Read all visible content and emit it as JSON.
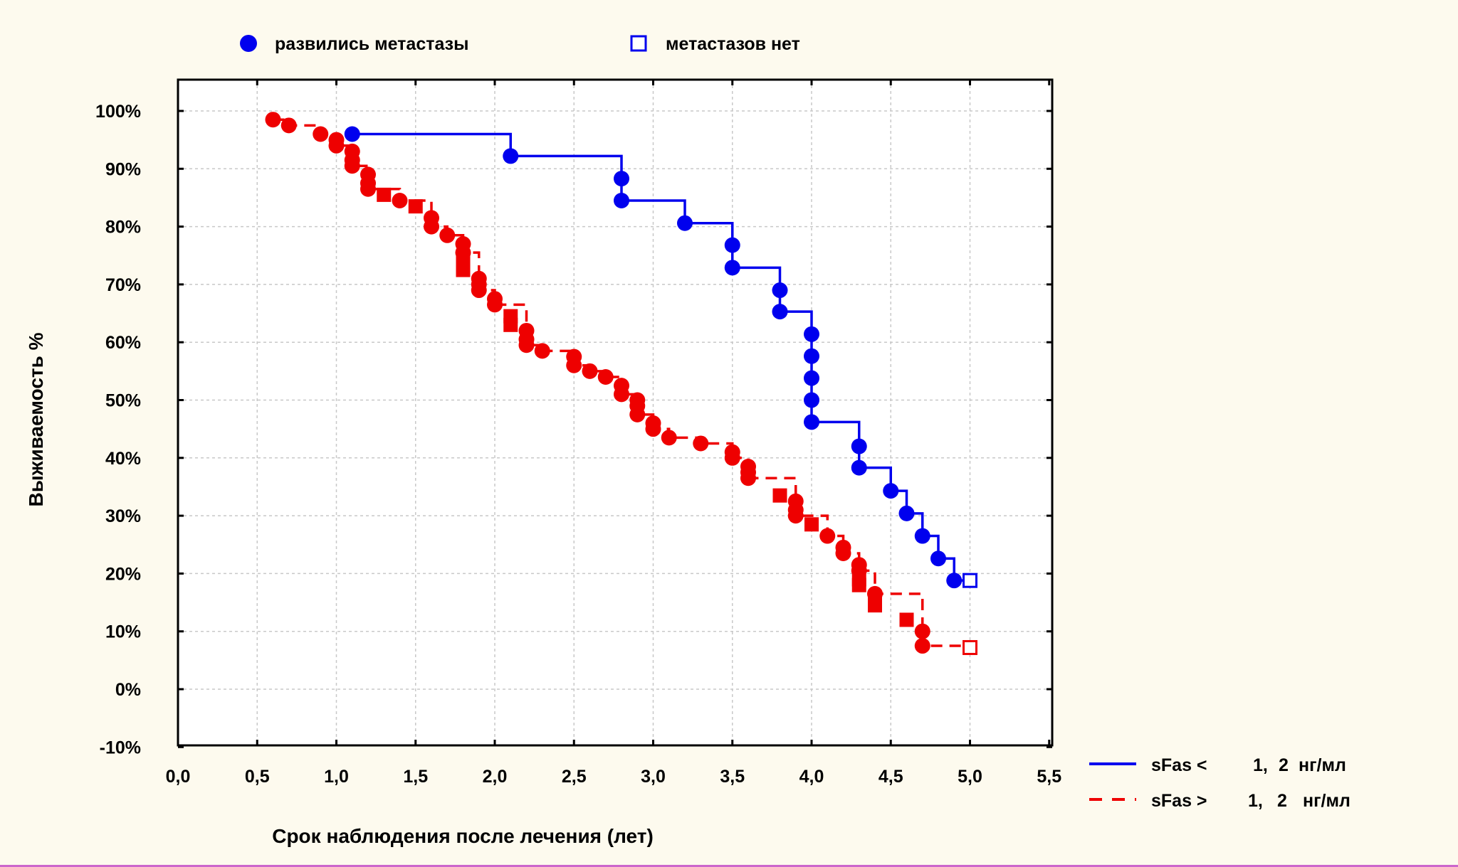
{
  "chart_data": {
    "type": "line",
    "title": "",
    "xlabel": "Срок наблюдения после лечения (лет)",
    "ylabel": "Выживаемость %",
    "xlim": [
      0.0,
      5.5
    ],
    "ylim": [
      -10,
      105
    ],
    "x_ticks": [
      "0,0",
      "0,5",
      "1,0",
      "1,5",
      "2,0",
      "2,5",
      "3,0",
      "3,5",
      "4,0",
      "4,5",
      "5,0",
      "5,5"
    ],
    "y_ticks": [
      "100%",
      "90%",
      "80%",
      "70%",
      "60%",
      "50%",
      "40%",
      "30%",
      "20%",
      "10%",
      "0%",
      "-10%"
    ],
    "grid": true,
    "marker_legend": {
      "event": {
        "label": "развились метастазы",
        "marker": "filled-circle"
      },
      "censored": {
        "label": "метастазов нет",
        "marker": "open-square"
      }
    },
    "series": [
      {
        "name": "sFas <",
        "name_value": "1,",
        "name_value2": "2",
        "name_unit": "нг/мл",
        "color": "#0000ee",
        "style": "solid",
        "steps": [
          [
            1.1,
            96
          ],
          [
            2.1,
            92.2
          ],
          [
            2.8,
            88.3
          ],
          [
            2.8,
            84.5
          ],
          [
            3.2,
            80.6
          ],
          [
            3.5,
            76.8
          ],
          [
            3.5,
            72.9
          ],
          [
            3.8,
            69
          ],
          [
            3.8,
            65.3
          ],
          [
            4.0,
            61.4
          ],
          [
            4.0,
            57.6
          ],
          [
            4.0,
            53.8
          ],
          [
            4.0,
            50
          ],
          [
            4.0,
            46.2
          ],
          [
            4.3,
            42
          ],
          [
            4.3,
            38.3
          ],
          [
            4.5,
            34.3
          ],
          [
            4.6,
            30.4
          ],
          [
            4.7,
            26.5
          ],
          [
            4.8,
            22.6
          ],
          [
            4.9,
            18.8
          ]
        ],
        "events": [
          [
            1.1,
            96
          ],
          [
            2.1,
            92.2
          ],
          [
            2.8,
            88.3
          ],
          [
            2.8,
            84.5
          ],
          [
            3.2,
            80.6
          ],
          [
            3.5,
            76.8
          ],
          [
            3.5,
            72.9
          ],
          [
            3.8,
            69
          ],
          [
            3.8,
            65.3
          ],
          [
            4.0,
            61.4
          ],
          [
            4.0,
            57.6
          ],
          [
            4.0,
            53.8
          ],
          [
            4.0,
            50
          ],
          [
            4.0,
            46.2
          ],
          [
            4.3,
            42
          ],
          [
            4.3,
            38.3
          ],
          [
            4.5,
            34.3
          ],
          [
            4.6,
            30.4
          ],
          [
            4.7,
            26.5
          ],
          [
            4.8,
            22.6
          ],
          [
            4.9,
            18.8
          ]
        ],
        "censored": [
          [
            5.0,
            18.8
          ]
        ],
        "end_x": 5.0
      },
      {
        "name": "sFas >",
        "name_value": "1,",
        "name_value2": "2",
        "name_unit": "нг/мл",
        "color": "#ee0000",
        "style": "dashed",
        "steps": [
          [
            0.6,
            98.5
          ],
          [
            0.7,
            97.5
          ],
          [
            0.9,
            96
          ],
          [
            1.0,
            95
          ],
          [
            1.0,
            94
          ],
          [
            1.1,
            93
          ],
          [
            1.1,
            91.5
          ],
          [
            1.1,
            90.5
          ],
          [
            1.2,
            89
          ],
          [
            1.2,
            87.5
          ],
          [
            1.2,
            86.5
          ],
          [
            1.4,
            84.5
          ],
          [
            1.6,
            81.5
          ],
          [
            1.6,
            80
          ],
          [
            1.7,
            78.5
          ],
          [
            1.8,
            77
          ],
          [
            1.8,
            75.5
          ],
          [
            1.9,
            71
          ],
          [
            1.9,
            70
          ],
          [
            1.9,
            69
          ],
          [
            2.0,
            67.5
          ],
          [
            2.0,
            66.5
          ],
          [
            2.2,
            62
          ],
          [
            2.2,
            60.5
          ],
          [
            2.2,
            59.5
          ],
          [
            2.3,
            58.5
          ],
          [
            2.5,
            57.5
          ],
          [
            2.5,
            56
          ],
          [
            2.6,
            55
          ],
          [
            2.7,
            54
          ],
          [
            2.8,
            52.5
          ],
          [
            2.8,
            51
          ],
          [
            2.9,
            50
          ],
          [
            2.9,
            49
          ],
          [
            2.9,
            47.5
          ],
          [
            3.0,
            46
          ],
          [
            3.0,
            45
          ],
          [
            3.1,
            43.5
          ],
          [
            3.3,
            42.5
          ],
          [
            3.5,
            41
          ],
          [
            3.5,
            40
          ],
          [
            3.6,
            38.5
          ],
          [
            3.6,
            37.5
          ],
          [
            3.6,
            36.5
          ],
          [
            3.9,
            32.5
          ],
          [
            3.9,
            31
          ],
          [
            3.9,
            30
          ],
          [
            4.1,
            26.5
          ],
          [
            4.2,
            24.5
          ],
          [
            4.2,
            23.5
          ],
          [
            4.3,
            21.5
          ],
          [
            4.3,
            20.5
          ],
          [
            4.4,
            16.5
          ],
          [
            4.7,
            10
          ],
          [
            4.7,
            7.5
          ]
        ],
        "events": [
          [
            0.6,
            98.5
          ],
          [
            0.7,
            97.5
          ],
          [
            0.9,
            96
          ],
          [
            1.0,
            95
          ],
          [
            1.0,
            94
          ],
          [
            1.1,
            93
          ],
          [
            1.1,
            91.5
          ],
          [
            1.1,
            90.5
          ],
          [
            1.2,
            89
          ],
          [
            1.2,
            87.5
          ],
          [
            1.2,
            86.5
          ],
          [
            1.4,
            84.5
          ],
          [
            1.6,
            81.5
          ],
          [
            1.6,
            80
          ],
          [
            1.7,
            78.5
          ],
          [
            1.8,
            77
          ],
          [
            1.8,
            75.5
          ],
          [
            1.9,
            71
          ],
          [
            1.9,
            70
          ],
          [
            1.9,
            69
          ],
          [
            2.0,
            67.5
          ],
          [
            2.0,
            66.5
          ],
          [
            2.2,
            62
          ],
          [
            2.2,
            60.5
          ],
          [
            2.2,
            59.5
          ],
          [
            2.3,
            58.5
          ],
          [
            2.5,
            57.5
          ],
          [
            2.5,
            56
          ],
          [
            2.6,
            55
          ],
          [
            2.7,
            54
          ],
          [
            2.8,
            52.5
          ],
          [
            2.8,
            51
          ],
          [
            2.9,
            50
          ],
          [
            2.9,
            49
          ],
          [
            2.9,
            47.5
          ],
          [
            3.0,
            46
          ],
          [
            3.0,
            45
          ],
          [
            3.1,
            43.5
          ],
          [
            3.3,
            42.5
          ],
          [
            3.5,
            41
          ],
          [
            3.5,
            40
          ],
          [
            3.6,
            38.5
          ],
          [
            3.6,
            37.5
          ],
          [
            3.6,
            36.5
          ],
          [
            3.9,
            32.5
          ],
          [
            3.9,
            31
          ],
          [
            3.9,
            30
          ],
          [
            4.1,
            26.5
          ],
          [
            4.2,
            24.5
          ],
          [
            4.2,
            23.5
          ],
          [
            4.3,
            21.5
          ],
          [
            4.3,
            20.5
          ],
          [
            4.4,
            16.5
          ],
          [
            4.7,
            10
          ],
          [
            4.7,
            7.5
          ]
        ],
        "censored": [
          [
            1.3,
            85.5
          ],
          [
            1.5,
            83.5
          ],
          [
            1.8,
            74
          ],
          [
            1.8,
            72.5
          ],
          [
            2.1,
            64.5
          ],
          [
            2.1,
            63
          ],
          [
            3.8,
            33.5
          ],
          [
            4.0,
            28.5
          ],
          [
            4.3,
            19
          ],
          [
            4.3,
            18
          ],
          [
            4.4,
            15.5
          ],
          [
            4.4,
            14.5
          ],
          [
            4.6,
            12
          ],
          [
            5.0,
            7.2
          ]
        ],
        "end_x": 5.0
      }
    ]
  }
}
